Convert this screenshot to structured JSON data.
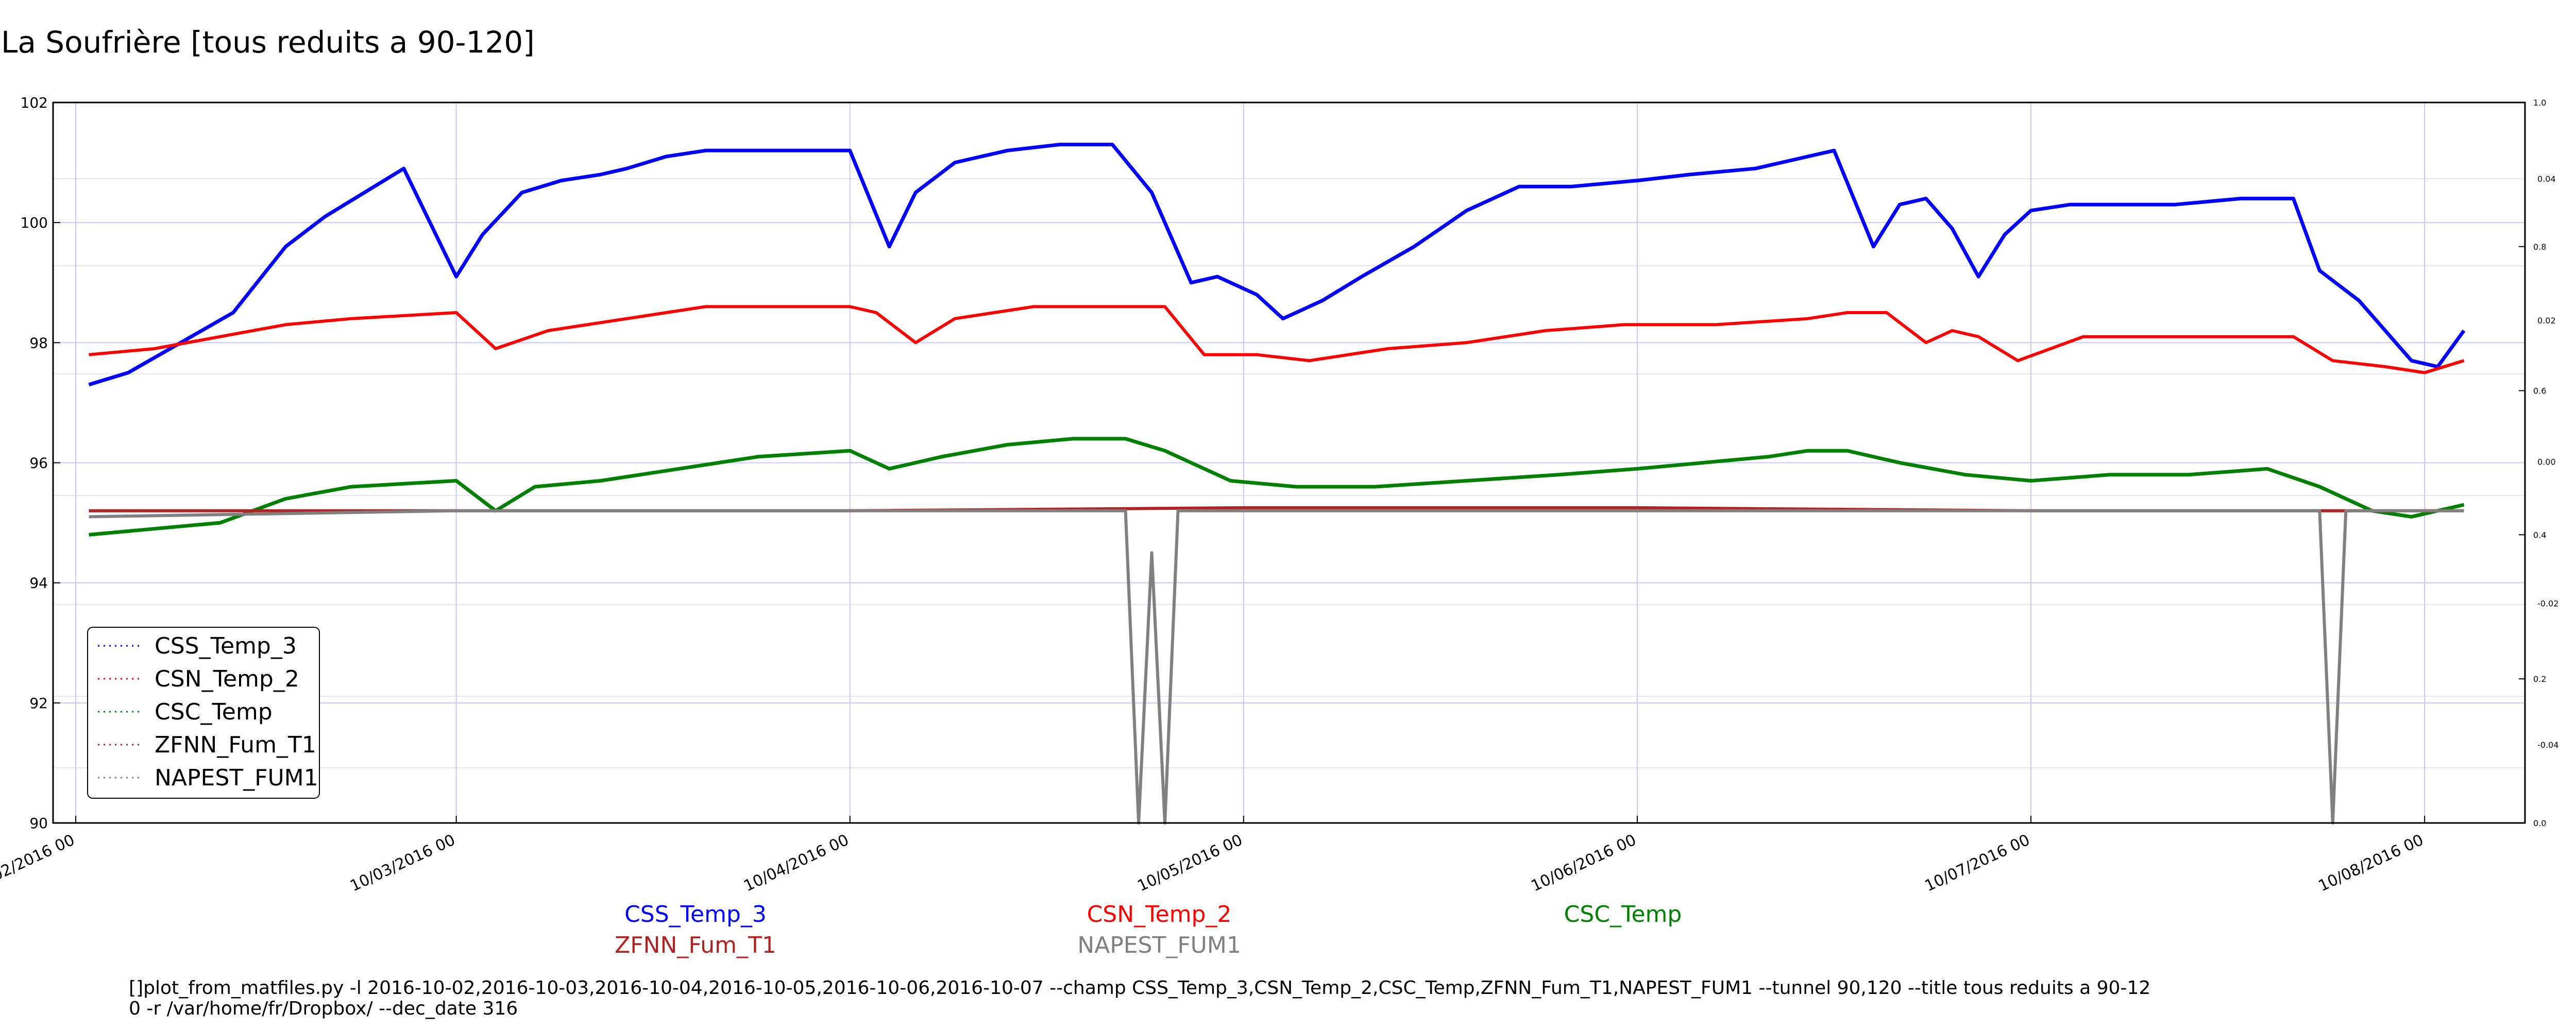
{
  "chart_data": {
    "type": "line",
    "title": "La Soufrière [tous reduits a 90-120]",
    "xlabel": "",
    "ylabel": "",
    "ylim": [
      90,
      102
    ],
    "y_ticks": [
      90,
      92,
      94,
      96,
      98,
      100,
      102
    ],
    "y2_ticks_outer": [
      "0.0",
      "0.2",
      "0.4",
      "0.6",
      "0.8",
      "1.0"
    ],
    "y2_ticks_inner": [
      "-0.04",
      "-0.02",
      "0.00",
      "0.02",
      "0.04"
    ],
    "x_range": [
      "2016-02-01",
      "2016-08-02"
    ],
    "x_ticks": [
      {
        "date": "2016-02-01",
        "label": "10/02/2016 00"
      },
      {
        "date": "2016-03-01",
        "label": "10/03/2016 00"
      },
      {
        "date": "2016-03-31",
        "label": "10/04/2016 00"
      },
      {
        "date": "2016-04-30",
        "label": "10/05/2016 00"
      },
      {
        "date": "2016-05-30",
        "label": "10/06/2016 00"
      },
      {
        "date": "2016-06-29",
        "label": "10/07/2016 00"
      },
      {
        "date": "2016-07-29",
        "label": "10/08/2016 00"
      }
    ],
    "grid": true,
    "legend": "bottom-left",
    "series": [
      {
        "name": "CSS_Temp_3",
        "color": "#0000ff",
        "x": [
          "2016-02-02",
          "2016-02-05",
          "2016-02-09",
          "2016-02-13",
          "2016-02-17",
          "2016-02-20",
          "2016-02-23",
          "2016-02-26",
          "2016-03-01",
          "2016-03-03",
          "2016-03-06",
          "2016-03-09",
          "2016-03-12",
          "2016-03-14",
          "2016-03-17",
          "2016-03-20",
          "2016-03-24",
          "2016-03-27",
          "2016-03-31",
          "2016-04-03",
          "2016-04-05",
          "2016-04-08",
          "2016-04-12",
          "2016-04-16",
          "2016-04-20",
          "2016-04-23",
          "2016-04-26",
          "2016-04-28",
          "2016-05-01",
          "2016-05-03",
          "2016-05-06",
          "2016-05-09",
          "2016-05-13",
          "2016-05-17",
          "2016-05-21",
          "2016-05-25",
          "2016-05-30",
          "2016-06-03",
          "2016-06-08",
          "2016-06-12",
          "2016-06-14",
          "2016-06-17",
          "2016-06-19",
          "2016-06-21",
          "2016-06-23",
          "2016-06-25",
          "2016-06-27",
          "2016-06-29",
          "2016-07-02",
          "2016-07-06",
          "2016-07-10",
          "2016-07-15",
          "2016-07-19",
          "2016-07-21",
          "2016-07-24",
          "2016-07-28",
          "2016-07-30",
          "2016-08-01"
        ],
        "values": [
          97.3,
          97.5,
          98.0,
          98.5,
          99.6,
          100.1,
          100.5,
          100.9,
          99.1,
          99.8,
          100.5,
          100.7,
          100.8,
          100.9,
          101.1,
          101.2,
          101.2,
          101.2,
          101.2,
          99.6,
          100.5,
          101.0,
          101.2,
          101.3,
          101.3,
          100.5,
          99.0,
          99.1,
          98.8,
          98.4,
          98.7,
          99.1,
          99.6,
          100.2,
          100.6,
          100.6,
          100.7,
          100.8,
          100.9,
          101.1,
          101.2,
          99.6,
          100.3,
          100.4,
          99.9,
          99.1,
          99.8,
          100.2,
          100.3,
          100.3,
          100.3,
          100.4,
          100.4,
          99.2,
          98.7,
          97.7,
          97.6,
          98.2
        ]
      },
      {
        "name": "CSN_Temp_2",
        "color": "#ff0000",
        "x": [
          "2016-02-02",
          "2016-02-07",
          "2016-02-12",
          "2016-02-17",
          "2016-02-22",
          "2016-03-01",
          "2016-03-04",
          "2016-03-08",
          "2016-03-14",
          "2016-03-20",
          "2016-03-26",
          "2016-03-31",
          "2016-04-02",
          "2016-04-05",
          "2016-04-08",
          "2016-04-14",
          "2016-04-20",
          "2016-04-24",
          "2016-04-27",
          "2016-05-01",
          "2016-05-05",
          "2016-05-11",
          "2016-05-17",
          "2016-05-23",
          "2016-05-29",
          "2016-06-05",
          "2016-06-12",
          "2016-06-15",
          "2016-06-18",
          "2016-06-21",
          "2016-06-23",
          "2016-06-25",
          "2016-06-28",
          "2016-07-03",
          "2016-07-10",
          "2016-07-16",
          "2016-07-19",
          "2016-07-22",
          "2016-07-26",
          "2016-07-29",
          "2016-08-01"
        ],
        "values": [
          97.8,
          97.9,
          98.1,
          98.3,
          98.4,
          98.5,
          97.9,
          98.2,
          98.4,
          98.6,
          98.6,
          98.6,
          98.5,
          98.0,
          98.4,
          98.6,
          98.6,
          98.6,
          97.8,
          97.8,
          97.7,
          97.9,
          98.0,
          98.2,
          98.3,
          98.3,
          98.4,
          98.5,
          98.5,
          98.0,
          98.2,
          98.1,
          97.7,
          98.1,
          98.1,
          98.1,
          98.1,
          97.7,
          97.6,
          97.5,
          97.7
        ]
      },
      {
        "name": "CSC_Temp",
        "color": "#008000",
        "x": [
          "2016-02-02",
          "2016-02-07",
          "2016-02-12",
          "2016-02-17",
          "2016-02-22",
          "2016-03-01",
          "2016-03-04",
          "2016-03-07",
          "2016-03-12",
          "2016-03-18",
          "2016-03-24",
          "2016-03-31",
          "2016-04-03",
          "2016-04-07",
          "2016-04-12",
          "2016-04-17",
          "2016-04-21",
          "2016-04-24",
          "2016-04-26",
          "2016-04-29",
          "2016-05-04",
          "2016-05-10",
          "2016-05-17",
          "2016-05-24",
          "2016-05-30",
          "2016-06-04",
          "2016-06-09",
          "2016-06-12",
          "2016-06-15",
          "2016-06-19",
          "2016-06-24",
          "2016-06-29",
          "2016-07-05",
          "2016-07-11",
          "2016-07-17",
          "2016-07-21",
          "2016-07-25",
          "2016-07-28",
          "2016-08-01"
        ],
        "values": [
          94.8,
          94.9,
          95.0,
          95.4,
          95.6,
          95.7,
          95.2,
          95.6,
          95.7,
          95.9,
          96.1,
          96.2,
          95.9,
          96.1,
          96.3,
          96.4,
          96.4,
          96.2,
          96.0,
          95.7,
          95.6,
          95.6,
          95.7,
          95.8,
          95.9,
          96.0,
          96.1,
          96.2,
          96.2,
          96.0,
          95.8,
          95.7,
          95.8,
          95.8,
          95.9,
          95.6,
          95.2,
          95.1,
          95.3
        ]
      },
      {
        "name": "ZFNN_Fum_T1",
        "color": "#b22222",
        "x": [
          "2016-02-02",
          "2016-03-01",
          "2016-03-31",
          "2016-04-30",
          "2016-05-30",
          "2016-06-29",
          "2016-08-01"
        ],
        "values": [
          95.2,
          95.2,
          95.2,
          95.25,
          95.25,
          95.2,
          95.2
        ]
      },
      {
        "name": "NAPEST_FUM1",
        "color": "#808080",
        "x": [
          "2016-02-02",
          "2016-03-01",
          "2016-03-31",
          "2016-04-21",
          "2016-04-22",
          "2016-04-23",
          "2016-04-24",
          "2016-04-25",
          "2016-04-30",
          "2016-05-30",
          "2016-06-29",
          "2016-07-21",
          "2016-07-22",
          "2016-07-23",
          "2016-08-01"
        ],
        "values": [
          95.1,
          95.2,
          95.2,
          95.2,
          90.0,
          94.5,
          90.0,
          95.2,
          95.2,
          95.2,
          95.2,
          95.2,
          90.0,
          95.2,
          95.2
        ]
      }
    ]
  },
  "legend_entries": [
    "CSS_Temp_3",
    "CSN_Temp_2",
    "CSC_Temp",
    "ZFNN_Fum_T1",
    "NAPEST_FUM1"
  ],
  "series_labels": [
    "CSS_Temp_3",
    "CSN_Temp_2",
    "CSC_Temp",
    "ZFNN_Fum_T1",
    "NAPEST_FUM1"
  ],
  "command_line": {
    "line1": "[]plot_from_matfiles.py -l 2016-10-02,2016-10-03,2016-10-04,2016-10-05,2016-10-06,2016-10-07 --champ CSS_Temp_3,CSN_Temp_2,CSC_Temp,ZFNN_Fum_T1,NAPEST_FUM1 --tunnel 90,120 --title tous reduits a 90-12",
    "line2": "0 -r /var/home/fr/Dropbox/ --dec_date 316"
  }
}
